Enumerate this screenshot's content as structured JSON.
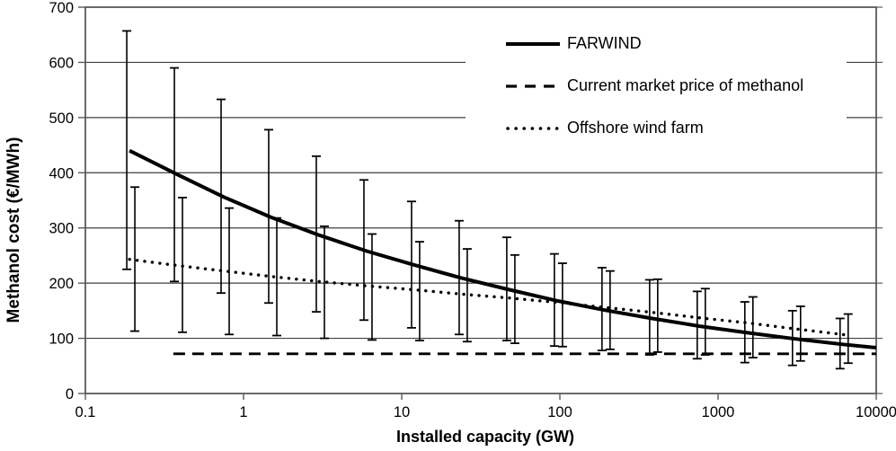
{
  "chart_data": {
    "type": "line",
    "title": "",
    "xlabel": "Installed capacity (GW)",
    "ylabel": "Methanol cost (€/MWh)",
    "x_scale": "log",
    "xlim": [
      0.1,
      10000
    ],
    "ylim": [
      0,
      700
    ],
    "x_tick_labels": [
      "0.1",
      "1",
      "10",
      "100",
      "1000",
      "10000"
    ],
    "x_tick_values": [
      0.1,
      1,
      10,
      100,
      1000,
      10000
    ],
    "y_ticks": [
      0,
      100,
      200,
      300,
      400,
      500,
      600,
      700
    ],
    "grid": "horizontal",
    "legend_position": "top-right-inside",
    "series": [
      {
        "name": "FARWIND",
        "line_style": "solid",
        "color": "#000000",
        "has_error_bars": true,
        "x": [
          0.19,
          0.38,
          0.75,
          1.5,
          3,
          6,
          12,
          24,
          48,
          96,
          192,
          384,
          768,
          1536,
          3072,
          6144,
          10000
        ],
        "y": [
          440,
          397,
          356,
          319,
          287,
          258,
          233,
          209,
          188,
          168,
          151,
          136,
          122,
          110,
          99,
          89,
          83
        ],
        "err_low": [
          225,
          203,
          182,
          164,
          148,
          133,
          119,
          107,
          96,
          86,
          78,
          70,
          63,
          56,
          51,
          45,
          null
        ],
        "err_high": [
          657,
          590,
          533,
          478,
          430,
          387,
          348,
          313,
          283,
          253,
          228,
          206,
          185,
          166,
          150,
          136,
          null
        ]
      },
      {
        "name": "Current market price of methanol",
        "line_style": "dashed",
        "color": "#000000",
        "has_error_bars": false,
        "x": [
          0.36,
          10000
        ],
        "y": [
          72,
          72
        ],
        "err_low": [
          null,
          null
        ],
        "err_high": [
          null,
          null
        ]
      },
      {
        "name": "Offshore wind farm",
        "line_style": "dotted",
        "color": "#000000",
        "has_error_bars": true,
        "x": [
          0.19,
          0.38,
          0.75,
          1.5,
          3,
          6,
          12,
          24,
          48,
          96,
          192,
          384,
          768,
          1536,
          3072,
          6144,
          6800
        ],
        "y": [
          243,
          232,
          222,
          212,
          203,
          195,
          188,
          180,
          173,
          165,
          156,
          147,
          137,
          128,
          117,
          107,
          105
        ],
        "err_low": [
          113,
          111,
          107,
          105,
          100,
          97,
          96,
          94,
          91,
          85,
          80,
          75,
          70,
          65,
          59,
          55,
          null
        ],
        "err_high": [
          374,
          355,
          336,
          318,
          303,
          289,
          275,
          262,
          251,
          236,
          222,
          207,
          190,
          175,
          158,
          144,
          null
        ]
      }
    ],
    "colors": {
      "line": "#000000",
      "gridline": "#3f3f3f",
      "axis_frame": "#595959",
      "background": "#ffffff"
    }
  }
}
